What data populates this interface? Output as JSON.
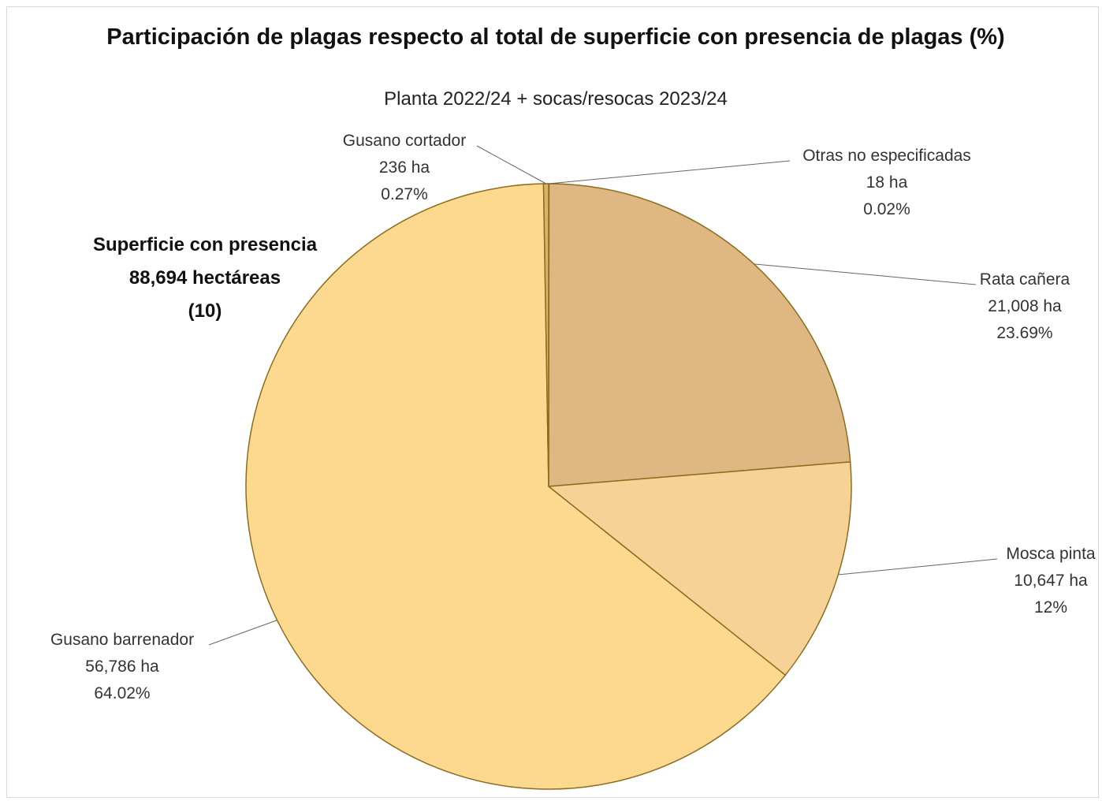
{
  "chart_data": {
    "type": "pie",
    "title": "Participación de plagas respecto al total de superficie con presencia de plagas (%)",
    "subtitle": "Planta 2022/24 + socas/resocas 2023/24",
    "note": {
      "line1": "Superficie con presencia",
      "line2": "88,694 hectáreas",
      "line3": "(10)"
    },
    "slices": [
      {
        "name": "Otras no especificadas",
        "area": "18  ha",
        "percent_label": "0.02%",
        "value": 0.02,
        "color": "#e0be8a"
      },
      {
        "name": "Rata cañera",
        "area": "21,008  ha",
        "percent_label": "23.69%",
        "value": 23.69,
        "color": "#dfb783"
      },
      {
        "name": "Mosca pinta",
        "area": "10,647  ha",
        "percent_label": "12%",
        "value": 12.0,
        "color": "#f7d296"
      },
      {
        "name": "Gusano barrenador",
        "area": "56,786  ha",
        "percent_label": "64.02%",
        "value": 64.02,
        "color": "#fdd88f"
      },
      {
        "name": "Gusano cortador",
        "area": "236  ha",
        "percent_label": "0.27%",
        "value": 0.27,
        "color": "#dcb06c"
      }
    ],
    "border_color": "#8a6d1f"
  }
}
